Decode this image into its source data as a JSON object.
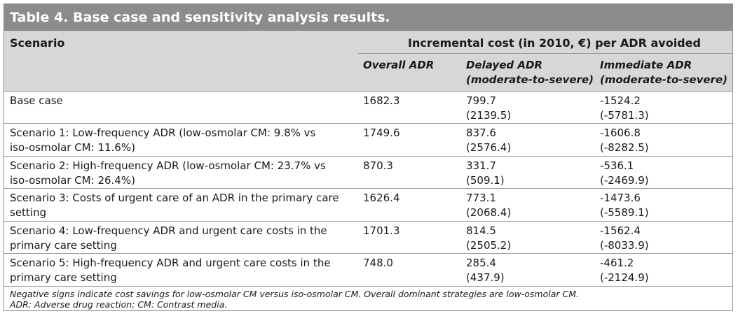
{
  "table": {
    "title": "Table 4. Base case and sensitivity analysis results.",
    "header": {
      "scenario": "Scenario",
      "group": "Incremental cost (in 2010, €) per ADR avoided",
      "overall": "Overall ADR",
      "delayed_line1": "Delayed ADR",
      "delayed_line2": "(moderate-to-severe)",
      "immediate_line1": "Immediate ADR",
      "immediate_line2": "(moderate-to-severe)"
    },
    "rows": [
      {
        "scenario_line1": "Base case",
        "scenario_line2": "",
        "overall": "1682.3",
        "delayed_line1": "799.7",
        "delayed_line2": "(2139.5)",
        "immediate_line1": "-1524.2",
        "immediate_line2": "(-5781.3)"
      },
      {
        "scenario_line1": "Scenario 1: Low-frequency ADR (low-osmolar CM: 9.8% vs",
        "scenario_line2": "iso-osmolar CM: 11.6%)",
        "overall": "1749.6",
        "delayed_line1": "837.6",
        "delayed_line2": "(2576.4)",
        "immediate_line1": "-1606.8",
        "immediate_line2": "(-8282.5)"
      },
      {
        "scenario_line1": "Scenario 2: High-frequency ADR (low-osmolar CM: 23.7% vs",
        "scenario_line2": "iso-osmolar CM: 26.4%)",
        "overall": "870.3",
        "delayed_line1": "331.7",
        "delayed_line2": "(509.1)",
        "immediate_line1": "-536.1",
        "immediate_line2": "(-2469.9)"
      },
      {
        "scenario_line1": "Scenario 3: Costs of urgent care of an ADR in the primary care",
        "scenario_line2": "setting",
        "overall": "1626.4",
        "delayed_line1": "773.1",
        "delayed_line2": "(2068.4)",
        "immediate_line1": "-1473.6",
        "immediate_line2": "(-5589.1)"
      },
      {
        "scenario_line1": "Scenario 4: Low-frequency ADR and urgent care costs in the",
        "scenario_line2": "primary care setting",
        "overall": "1701.3",
        "delayed_line1": "814.5",
        "delayed_line2": "(2505.2)",
        "immediate_line1": "-1562.4",
        "immediate_line2": "(-8033.9)"
      },
      {
        "scenario_line1": "Scenario 5: High-frequency ADR and urgent care costs in the",
        "scenario_line2": "primary care setting",
        "overall": "748.0",
        "delayed_line1": "285.4",
        "delayed_line2": "(437.9)",
        "immediate_line1": "-461.2",
        "immediate_line2": "(-2124.9)"
      }
    ],
    "notes": [
      "Negative signs indicate cost savings for low-osmolar CM versus iso-osmolar CM. Overall dominant strategies are low-osmolar CM.",
      "ADR: Adverse drug reaction; CM: Contrast media."
    ]
  }
}
